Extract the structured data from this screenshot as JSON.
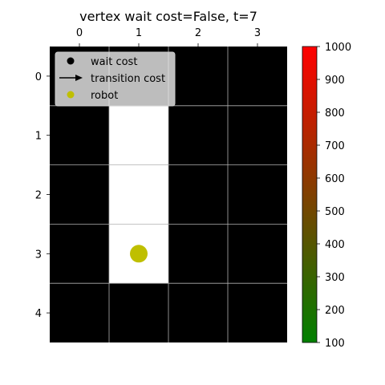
{
  "chart_data": {
    "type": "heatmap",
    "title": "vertex wait cost=False, t=7",
    "grid": true,
    "x_ticks": [
      "0",
      "1",
      "2",
      "3"
    ],
    "y_ticks": [
      "0",
      "1",
      "2",
      "3",
      "4"
    ],
    "cols": 4,
    "rows": 5,
    "background_color": "#000000",
    "grid_color": "#b0b0b0",
    "free_cells": [
      {
        "col": 1,
        "row": 1,
        "color": "#ffffff"
      },
      {
        "col": 1,
        "row": 2,
        "color": "#ffffff"
      },
      {
        "col": 1,
        "row": 3,
        "color": "#ffffff"
      }
    ],
    "robot": {
      "col": 1,
      "row": 3,
      "color": "#bfbf00"
    },
    "legend": {
      "placement": "top-left",
      "items": [
        {
          "label": "wait cost",
          "marker": "dot",
          "color": "#000000"
        },
        {
          "label": "transition cost",
          "marker": "arrow",
          "color": "#000000"
        },
        {
          "label": "robot",
          "marker": "dot",
          "color": "#bfbf00"
        }
      ]
    },
    "colorbar": {
      "min": 100,
      "max": 1000,
      "ticks": [
        "100",
        "200",
        "300",
        "400",
        "500",
        "600",
        "700",
        "800",
        "900",
        "1000"
      ],
      "color_low": "#008000",
      "color_high": "#ff0000"
    }
  }
}
